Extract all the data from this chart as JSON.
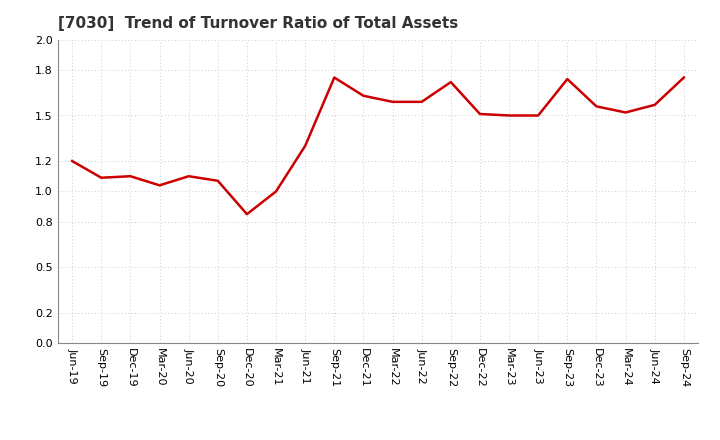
{
  "title": "[7030]  Trend of Turnover Ratio of Total Assets",
  "x_labels": [
    "Jun-19",
    "Sep-19",
    "Dec-19",
    "Mar-20",
    "Jun-20",
    "Sep-20",
    "Dec-20",
    "Mar-21",
    "Jun-21",
    "Sep-21",
    "Dec-21",
    "Mar-22",
    "Jun-22",
    "Sep-22",
    "Dec-22",
    "Mar-23",
    "Jun-23",
    "Sep-23",
    "Dec-23",
    "Mar-24",
    "Jun-24",
    "Sep-24"
  ],
  "y_values": [
    1.2,
    1.09,
    1.1,
    1.04,
    1.1,
    1.07,
    0.85,
    1.0,
    1.3,
    1.75,
    1.63,
    1.59,
    1.59,
    1.72,
    1.51,
    1.5,
    1.5,
    1.74,
    1.56,
    1.52,
    1.57,
    1.75
  ],
  "line_color": "#cc0000",
  "line_width": 1.8,
  "ylim": [
    0.0,
    2.0
  ],
  "yticks": [
    0.0,
    0.2,
    0.5,
    0.8,
    1.0,
    1.2,
    1.5,
    1.8,
    2.0
  ],
  "background_color": "#ffffff",
  "grid_color": "#bbbbbb",
  "title_fontsize": 11,
  "tick_fontsize": 8,
  "label_rotation": 270,
  "figsize": [
    7.2,
    4.4
  ],
  "dpi": 100
}
